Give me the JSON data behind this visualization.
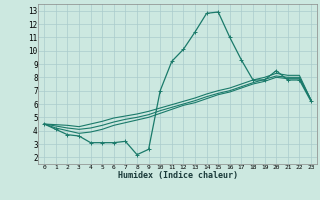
{
  "xlabel": "Humidex (Indice chaleur)",
  "background_color": "#cce8e0",
  "grid_color": "#aacccc",
  "line_color": "#1a7a6a",
  "xlim": [
    -0.5,
    23.5
  ],
  "ylim": [
    1.5,
    13.5
  ],
  "xticks": [
    0,
    1,
    2,
    3,
    4,
    5,
    6,
    7,
    8,
    9,
    10,
    11,
    12,
    13,
    14,
    15,
    16,
    17,
    18,
    19,
    20,
    21,
    22,
    23
  ],
  "yticks": [
    2,
    3,
    4,
    5,
    6,
    7,
    8,
    9,
    10,
    11,
    12,
    13
  ],
  "main_series": [
    4.5,
    4.1,
    3.7,
    3.6,
    3.1,
    3.1,
    3.1,
    3.2,
    2.2,
    2.6,
    7.0,
    9.2,
    10.1,
    11.4,
    12.8,
    12.9,
    11.0,
    9.3,
    7.8,
    7.8,
    8.5,
    7.8,
    7.8,
    6.2
  ],
  "line2": [
    4.5,
    4.2,
    4.0,
    3.8,
    3.9,
    4.1,
    4.4,
    4.6,
    4.8,
    5.0,
    5.3,
    5.6,
    5.9,
    6.1,
    6.4,
    6.7,
    6.9,
    7.2,
    7.5,
    7.7,
    8.0,
    7.9,
    7.9,
    6.3
  ],
  "line3": [
    4.5,
    4.35,
    4.2,
    4.1,
    4.2,
    4.4,
    4.65,
    4.85,
    5.0,
    5.2,
    5.5,
    5.75,
    6.0,
    6.25,
    6.55,
    6.8,
    7.0,
    7.3,
    7.6,
    7.85,
    8.1,
    8.0,
    8.0,
    6.3
  ],
  "line4": [
    4.5,
    4.45,
    4.4,
    4.3,
    4.5,
    4.7,
    4.95,
    5.1,
    5.25,
    5.45,
    5.7,
    5.95,
    6.2,
    6.45,
    6.75,
    7.0,
    7.2,
    7.5,
    7.8,
    8.0,
    8.3,
    8.15,
    8.15,
    6.3
  ]
}
